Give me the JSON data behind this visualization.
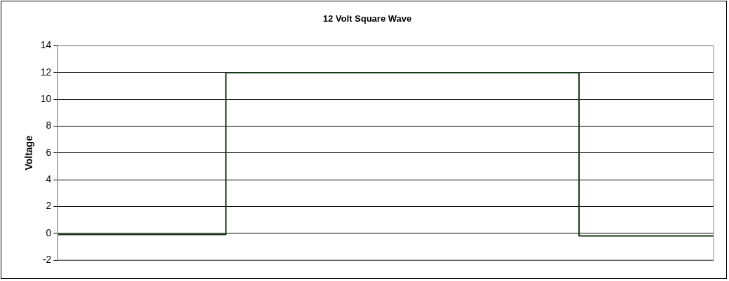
{
  "chart_data": {
    "type": "step",
    "title": "12 Volt Square Wave",
    "ylabel": "Voltage",
    "categories": [
      null,
      null,
      null,
      null,
      null,
      null,
      null,
      null,
      null,
      null,
      null,
      null,
      null,
      null,
      null,
      null,
      null,
      null,
      null,
      null,
      null,
      null,
      null,
      null,
      null,
      null,
      null,
      null,
      null,
      null,
      null,
      null,
      null,
      null,
      null,
      null,
      null,
      null,
      null,
      null
    ],
    "series": [
      {
        "color": "#163816",
        "values": [
          -0.1,
          -0.1,
          -0.1,
          -0.1,
          -0.1,
          -0.1,
          -0.1,
          -0.1,
          -0.1,
          -0.1,
          12,
          12,
          12,
          12,
          12,
          12,
          12,
          12,
          12,
          12,
          12,
          12,
          12,
          12,
          12,
          12,
          12,
          12,
          12,
          12,
          12,
          -0.2,
          -0.2,
          -0.2,
          -0.2,
          -0.2,
          -0.2,
          -0.2,
          -0.2,
          -0.2
        ]
      }
    ],
    "ylim": [
      -2,
      14
    ],
    "yticks": [
      -2,
      0,
      2,
      4,
      6,
      8,
      10,
      12,
      14
    ],
    "grid": "y",
    "legend": false,
    "tick_labels": "y",
    "marker": "none"
  }
}
